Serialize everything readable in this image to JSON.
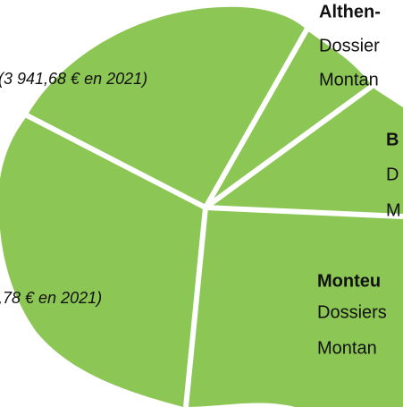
{
  "labels": {
    "top_right": {
      "title": "Althen-",
      "line1": "Dossier",
      "line2": "Montan"
    },
    "middle_right": {
      "title": "B",
      "line1": "D",
      "line2": "M"
    },
    "bottom_right": {
      "title": "Monteu",
      "line1": "Dossiers",
      "line2": "Montan"
    },
    "left_top": "(3 941,68 € en 2021)",
    "left_bottom": ",78 € en 2021)"
  }
}
